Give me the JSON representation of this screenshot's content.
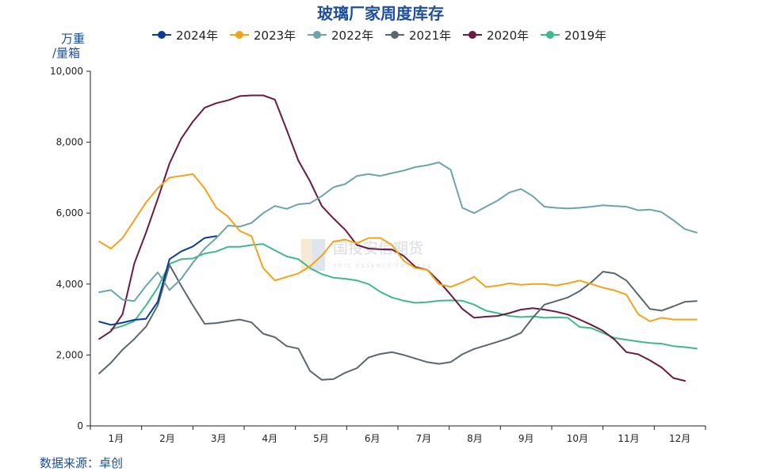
{
  "chart_data": {
    "type": "line",
    "title": "玻璃厂家周度库存",
    "unit_line1": "万重",
    "unit_line2": "/量箱",
    "source": "数据来源：卓创",
    "watermark": "国投安信期货",
    "watermark_sub": "SDIC ESSENCE FUTURES",
    "x_ticks": [
      "1月",
      "2月",
      "3月",
      "4月",
      "5月",
      "6月",
      "7月",
      "8月",
      "9月",
      "10月",
      "11月",
      "12月"
    ],
    "y_ticks": [
      "0",
      "2,000",
      "4,000",
      "6,000",
      "8,000",
      "10,000"
    ],
    "ylim": [
      0,
      10000
    ],
    "x_unit": "week of year (1–52)",
    "grid": false,
    "legend_position": "top",
    "series": [
      {
        "name": "2024年",
        "color": "#0a3d91",
        "x": [
          1,
          2,
          3,
          4,
          5,
          6,
          7,
          8,
          9,
          10,
          11
        ],
        "values": [
          2940,
          2850,
          2910,
          2990,
          3020,
          3500,
          4700,
          4920,
          5060,
          5300,
          5350
        ]
      },
      {
        "name": "2023年",
        "color": "#f2a31b",
        "x": [
          1,
          2,
          3,
          4,
          5,
          6,
          7,
          8,
          9,
          10,
          11,
          12,
          13,
          14,
          15,
          16,
          17,
          18,
          19,
          20,
          21,
          22,
          23,
          24,
          25,
          26,
          27,
          28,
          29,
          30,
          31,
          32,
          33,
          34,
          35,
          36,
          37,
          38,
          39,
          40,
          41,
          42,
          43,
          44,
          45,
          46,
          47,
          48,
          49,
          50,
          51,
          52
        ],
        "values": [
          5200,
          5000,
          5300,
          5800,
          6300,
          6700,
          7000,
          7050,
          7100,
          6700,
          6150,
          5900,
          5500,
          5350,
          4450,
          4100,
          4200,
          4300,
          4500,
          4800,
          5200,
          5250,
          5150,
          5300,
          5300,
          5100,
          4650,
          4450,
          4400,
          4000,
          3920,
          4050,
          4200,
          3920,
          3950,
          4020,
          3980,
          4000,
          4000,
          3960,
          4020,
          4100,
          4000,
          3900,
          3820,
          3700,
          3150,
          2950,
          3050,
          3000,
          3000,
          3000
        ]
      },
      {
        "name": "2022年",
        "color": "#6aa4ac",
        "x": [
          1,
          2,
          3,
          4,
          5,
          6,
          7,
          8,
          9,
          10,
          11,
          12,
          13,
          14,
          15,
          16,
          17,
          18,
          19,
          20,
          21,
          22,
          23,
          24,
          25,
          26,
          27,
          28,
          29,
          30,
          31,
          32,
          33,
          34,
          35,
          36,
          37,
          38,
          39,
          40,
          41,
          42,
          43,
          44,
          45,
          46,
          47,
          48,
          49,
          50,
          51,
          52
        ],
        "values": [
          3770,
          3830,
          3560,
          3520,
          3950,
          4330,
          3830,
          4150,
          4600,
          5000,
          5300,
          5650,
          5620,
          5720,
          6000,
          6200,
          6120,
          6250,
          6280,
          6480,
          6730,
          6820,
          7050,
          7100,
          7050,
          7130,
          7200,
          7300,
          7350,
          7430,
          7220,
          6150,
          6000,
          6180,
          6350,
          6580,
          6680,
          6480,
          6180,
          6150,
          6130,
          6150,
          6180,
          6220,
          6200,
          6180,
          6080,
          6100,
          6030,
          5800,
          5550,
          5450
        ]
      },
      {
        "name": "2021年",
        "color": "#5b6770",
        "x": [
          1,
          2,
          3,
          4,
          5,
          6,
          7,
          8,
          9,
          10,
          11,
          12,
          13,
          14,
          15,
          16,
          17,
          18,
          19,
          20,
          21,
          22,
          23,
          24,
          25,
          26,
          27,
          28,
          29,
          30,
          31,
          32,
          33,
          34,
          35,
          36,
          37,
          38,
          39,
          40,
          41,
          42,
          43,
          44,
          45,
          46,
          47,
          48,
          49,
          50,
          51,
          52
        ],
        "values": [
          1480,
          1780,
          2150,
          2450,
          2800,
          3400,
          4540,
          3950,
          3400,
          2880,
          2900,
          2950,
          3000,
          2920,
          2600,
          2500,
          2250,
          2180,
          1550,
          1300,
          1320,
          1500,
          1630,
          1930,
          2030,
          2080,
          2000,
          1900,
          1800,
          1750,
          1800,
          2020,
          2170,
          2270,
          2370,
          2480,
          2620,
          3050,
          3420,
          3520,
          3620,
          3800,
          4050,
          4350,
          4300,
          4100,
          3700,
          3300,
          3250,
          3370,
          3500,
          3520
        ]
      },
      {
        "name": "2020年",
        "color": "#6b1a43",
        "x": [
          1,
          2,
          3,
          4,
          5,
          6,
          7,
          8,
          9,
          10,
          11,
          12,
          13,
          14,
          15,
          16,
          17,
          18,
          19,
          20,
          21,
          22,
          23,
          24,
          25,
          26,
          27,
          28,
          29,
          30,
          31,
          32,
          33,
          34,
          35,
          36,
          37,
          38,
          39,
          40,
          41,
          42,
          43,
          44,
          45,
          46,
          47,
          48,
          49,
          50,
          51
        ],
        "values": [
          2450,
          2670,
          3150,
          4580,
          5450,
          6400,
          7400,
          8100,
          8580,
          8970,
          9100,
          9180,
          9300,
          9320,
          9320,
          9200,
          8350,
          7480,
          6900,
          6200,
          5850,
          5530,
          5100,
          5000,
          4980,
          4970,
          4790,
          4480,
          4400,
          4080,
          3700,
          3300,
          3050,
          3080,
          3100,
          3180,
          3280,
          3320,
          3280,
          3220,
          3140,
          3000,
          2850,
          2680,
          2430,
          2080,
          2020,
          1850,
          1650,
          1350,
          1270
        ]
      },
      {
        "name": "2019年",
        "color": "#3fb98a",
        "x": [
          2,
          3,
          4,
          5,
          6,
          7,
          8,
          9,
          10,
          11,
          12,
          13,
          14,
          15,
          16,
          17,
          18,
          19,
          20,
          21,
          22,
          23,
          24,
          25,
          26,
          27,
          28,
          29,
          30,
          31,
          32,
          33,
          34,
          35,
          36,
          37,
          38,
          39,
          40,
          41,
          42,
          43,
          44,
          45,
          46,
          47,
          48,
          49,
          50,
          51,
          52
        ],
        "values": [
          2720,
          2820,
          2950,
          3400,
          3900,
          4570,
          4700,
          4720,
          4860,
          4920,
          5050,
          5050,
          5100,
          5130,
          4950,
          4780,
          4700,
          4450,
          4280,
          4180,
          4150,
          4100,
          4000,
          3780,
          3620,
          3530,
          3470,
          3490,
          3530,
          3540,
          3530,
          3420,
          3250,
          3180,
          3100,
          3070,
          3090,
          3050,
          3060,
          3050,
          2790,
          2760,
          2620,
          2480,
          2430,
          2380,
          2340,
          2320,
          2250,
          2220,
          2180
        ]
      }
    ]
  }
}
